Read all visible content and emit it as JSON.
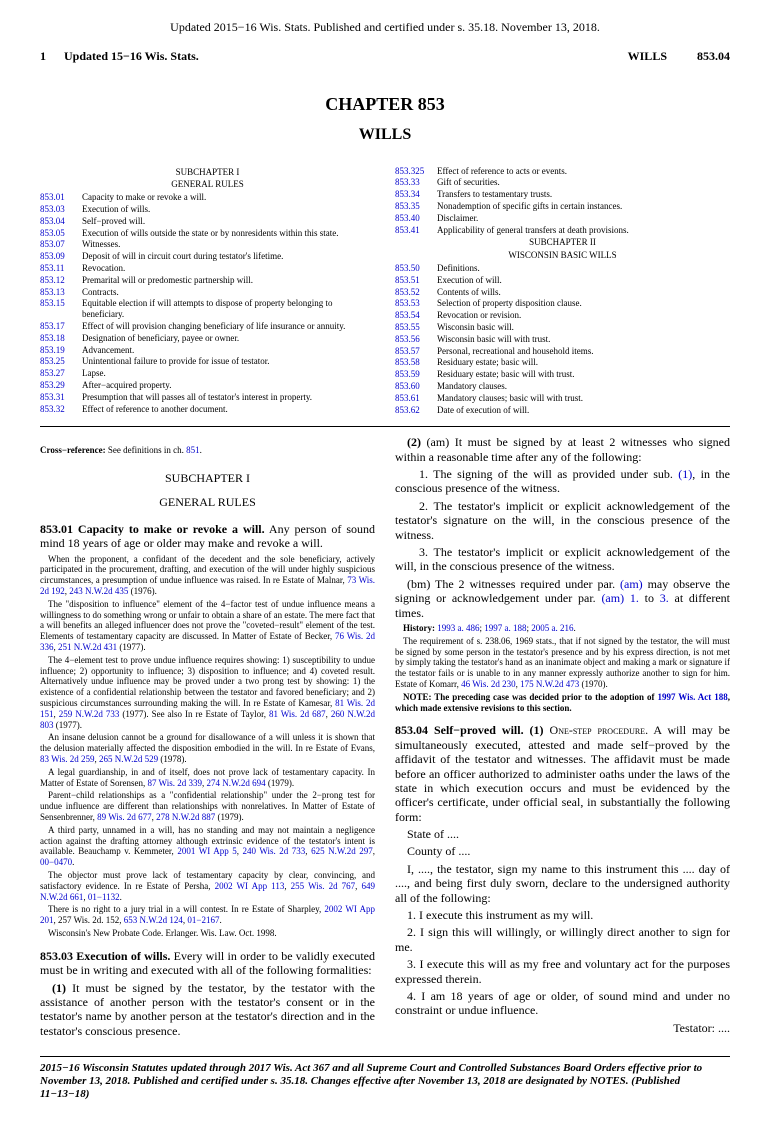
{
  "top_header": "Updated 2015−16 Wis. Stats. Published and certified under s. 35.18.  November 13, 2018.",
  "page_header": {
    "page_num": "1",
    "updated": "Updated 15−16 Wis. Stats.",
    "wills_label": "WILLS",
    "section": "853.04"
  },
  "chapter_title": "CHAPTER 853",
  "chapter_subtitle": "WILLS",
  "toc_left": {
    "subchapter": "SUBCHAPTER I",
    "heading": "GENERAL RULES",
    "items": [
      {
        "num": "853.01",
        "desc": "Capacity to make or revoke a will."
      },
      {
        "num": "853.03",
        "desc": "Execution of wills."
      },
      {
        "num": "853.04",
        "desc": "Self−proved will."
      },
      {
        "num": "853.05",
        "desc": "Execution of wills outside the state or by nonresidents within this state."
      },
      {
        "num": "853.07",
        "desc": "Witnesses."
      },
      {
        "num": "853.09",
        "desc": "Deposit of will in circuit court during testator's lifetime."
      },
      {
        "num": "853.11",
        "desc": "Revocation."
      },
      {
        "num": "853.12",
        "desc": "Premarital will or predomestic partnership will."
      },
      {
        "num": "853.13",
        "desc": "Contracts."
      },
      {
        "num": "853.15",
        "desc": "Equitable election if will attempts to dispose of property belonging to beneficiary."
      },
      {
        "num": "853.17",
        "desc": "Effect of will provision changing beneficiary of life insurance or annuity."
      },
      {
        "num": "853.18",
        "desc": "Designation of beneficiary, payee or owner."
      },
      {
        "num": "853.19",
        "desc": "Advancement."
      },
      {
        "num": "853.25",
        "desc": "Unintentional failure to provide for issue of testator."
      },
      {
        "num": "853.27",
        "desc": "Lapse."
      },
      {
        "num": "853.29",
        "desc": "After−acquired property."
      },
      {
        "num": "853.31",
        "desc": "Presumption that will passes all of testator's interest in property."
      },
      {
        "num": "853.32",
        "desc": "Effect of reference to another document."
      }
    ]
  },
  "toc_right": {
    "items1": [
      {
        "num": "853.325",
        "desc": "Effect of reference to acts or events."
      },
      {
        "num": "853.33",
        "desc": "Gift of securities."
      },
      {
        "num": "853.34",
        "desc": "Transfers to testamentary trusts."
      },
      {
        "num": "853.35",
        "desc": "Nonademption of specific gifts in certain instances."
      },
      {
        "num": "853.40",
        "desc": "Disclaimer."
      },
      {
        "num": "853.41",
        "desc": "Applicability of general transfers at death provisions."
      }
    ],
    "subchapter": "SUBCHAPTER II",
    "heading": "WISCONSIN BASIC WILLS",
    "items2": [
      {
        "num": "853.50",
        "desc": "Definitions."
      },
      {
        "num": "853.51",
        "desc": "Execution of will."
      },
      {
        "num": "853.52",
        "desc": "Contents of wills."
      },
      {
        "num": "853.53",
        "desc": "Selection of property disposition clause."
      },
      {
        "num": "853.54",
        "desc": "Revocation or revision."
      },
      {
        "num": "853.55",
        "desc": "Wisconsin basic will."
      },
      {
        "num": "853.56",
        "desc": "Wisconsin basic will with trust."
      },
      {
        "num": "853.57",
        "desc": "Personal, recreational and household items."
      },
      {
        "num": "853.58",
        "desc": "Residuary estate; basic will."
      },
      {
        "num": "853.59",
        "desc": "Residuary estate; basic will with trust."
      },
      {
        "num": "853.60",
        "desc": "Mandatory clauses."
      },
      {
        "num": "853.61",
        "desc": "Mandatory clauses; basic will with trust."
      },
      {
        "num": "853.62",
        "desc": "Date of execution of will."
      }
    ]
  },
  "cross_ref_label": "Cross−reference:",
  "cross_ref_text": "See definitions in ch.",
  "cross_ref_link": "851",
  "subchapter_hdr": "SUBCHAPTER I",
  "section_hdr": "GENERAL RULES",
  "s853_01": {
    "lead": "853.01  Capacity to make or revoke a will.",
    "text": "Any person of sound mind 18 years of age or older may make and revoke a will.",
    "ann1": "When the proponent, a confidant of the decedent and the sole beneficiary, actively participated in the procurement, drafting, and execution of the will under highly suspicious circumstances, a presumption of undue influence was raised.  In re Estate of Malnar,",
    "ann1_cite1": "73 Wis. 2d 192",
    "ann1_cite2": "243 N.W.2d 435",
    "ann1_year": "(1976).",
    "ann2": "The \"disposition to influence\" element of the 4−factor test of undue influence means a willingness to do something wrong or unfair to obtain a share of an estate.  The mere fact that a will benefits an alleged influencer does not prove the \"coveted−result\" element of the test.  Elements of testamentary capacity are discussed.  In Matter of Estate of Becker,",
    "ann2_cite1": "76 Wis. 2d 336",
    "ann2_cite2": "251 N.W.2d 431",
    "ann2_year": "(1977).",
    "ann3": "The 4−element test to prove undue influence requires showing: 1) susceptibility to undue influence; 2) opportunity to influence; 3) disposition to influence; and 4) coveted result.  Alternatively undue influence may be proved under a two prong test by showing: 1) the existence of a confidential relationship between the testator and favored beneficiary; and 2) suspicious circumstances surrounding making the will.  In re Estate of Kamesar,",
    "ann3_cite1": "81 Wis. 2d 151",
    "ann3_cite2": "259 N.W.2d 733",
    "ann3_year": "(1977).  See also In re Estate of Taylor,",
    "ann3_cite3": "81 Wis. 2d 687",
    "ann3_cite4": "260 N.W.2d 803",
    "ann3_year2": "(1977).",
    "ann4": "An insane delusion cannot be a ground for disallowance of a will unless it is shown that the delusion materially affected the disposition embodied in the will.  In re Estate of Evans,",
    "ann4_cite1": "83 Wis. 2d 259",
    "ann4_cite2": "265 N.W.2d 529",
    "ann4_year": "(1978).",
    "ann5": "A legal guardianship, in and of itself, does not prove lack of testamentary capacity.  In Matter of Estate of Sorensen,",
    "ann5_cite1": "87 Wis. 2d 339",
    "ann5_cite2": "274 N.W.2d 694",
    "ann5_year": "(1979).",
    "ann6": "Parent−child relationships as a \"confidential relationship\" under the 2−prong test for undue influence are different than relationships with nonrelatives.  In Matter of Estate of Sensenbrenner,",
    "ann6_cite1": "89 Wis. 2d 677",
    "ann6_cite2": "278 N.W.2d 887",
    "ann6_year": "(1979).",
    "ann7": "A third party, unnamed in a will, has no standing and may not maintain a negligence action against the drafting attorney although extrinsic evidence of the testator's intent is available.  Beauchamp v. Kemmeter,",
    "ann7_cite1": "2001 WI App 5",
    "ann7_cite2": "240 Wis. 2d 733",
    "ann7_cite3": "625 N.W.2d 297",
    "ann7_cite4": "00−0470",
    "ann8": "The objector must prove lack of testamentary capacity by clear, convincing, and satisfactory evidence.  In re Estate of Persha,",
    "ann8_cite1": "2002 WI App 113",
    "ann8_cite2": "255 Wis. 2d 767",
    "ann8_cite3": "649 N.W.2d 661",
    "ann8_cite4": "01−1132",
    "ann9": "There is no right to a jury trial in a will contest.  In re Estate of Sharpley,",
    "ann9_cite1": "2002 WI App 201",
    "ann9_mid": ", 257 Wis. 2d. 152,",
    "ann9_cite2": "653 N.W.2d 124",
    "ann9_cite3": "01−2167",
    "ann10": "Wisconsin's New Probate Code.  Erlanger.  Wis. Law. Oct. 1998."
  },
  "s853_03": {
    "lead": "853.03  Execution of wills.",
    "text": "Every will in order to be validly executed must be in writing and executed with all of the following formalities:",
    "p1_lead": "(1)",
    "p1": "It must be signed by the testator, by the testator with the assistance of another person with the testator's consent or in the testator's name by another person at the testator's direction and in the testator's conscious presence.",
    "p2_lead": "(2)",
    "p2_am": "(am)  It must be signed by at least 2 witnesses who signed within a reasonable time after any of the following:",
    "p2_1": "1.  The signing of the will as provided under sub.",
    "p2_1_link": "(1)",
    "p2_1_end": ", in the conscious presence of the witness.",
    "p2_2": "2.  The testator's implicit or explicit acknowledgement of the testator's signature on the will, in the conscious presence of the witness.",
    "p2_3": "3.  The testator's implicit or explicit acknowledgement of the will, in the conscious presence of the witness.",
    "bm": "(bm)  The 2 witnesses required under par.",
    "bm_link1": "(am)",
    "bm_mid": "may observe the signing or acknowledgement under par.",
    "bm_link2": "(am) 1.",
    "bm_to": "to",
    "bm_link3": "3.",
    "bm_end": "at different times.",
    "hist_lead": "History:",
    "hist_link1": "1993 a. 486",
    "hist_link2": "1997 a. 188",
    "hist_link3": "2005 a. 216",
    "ann1": "The requirement of s. 238.06, 1969 stats., that if not signed by the testator, the will must be signed by some person in the testator's presence and by his express direction, is not met by simply taking the testator's hand as an inanimate object and making a mark or signature if the testator fails or is unable to in any manner expressly authorize another to sign for him.  Estate of Komarr,",
    "ann1_cite1": "46 Wis. 2d 230",
    "ann1_cite2": "175 N.W.2d 473",
    "ann1_year": "(1970).",
    "note_lead": "NOTE:  The preceding case was decided prior to the adoption of",
    "note_link": "1997 Wis. Act 188",
    "note_end": ", which made extensive revisions to this section."
  },
  "s853_04": {
    "lead": "853.04  Self−proved will.  (1)",
    "sc": "One-step procedure.",
    "text": "A will may be simultaneously executed, attested and made self−proved by the affidavit of the testator and witnesses.  The affidavit must be made before an officer authorized to administer oaths under the laws of the state in which execution occurs and must be evidenced by the officer's certificate, under official seal, in substantially the following form:",
    "state": "State of ....",
    "county": "County of ....",
    "para": "I, ...., the testator, sign my name to this instrument this .... day of ...., and being first duly sworn, declare to the undersigned authority all of the following:",
    "i1": "1.  I execute this instrument as my will.",
    "i2": "2.  I sign this will willingly, or willingly direct another to sign for me.",
    "i3": "3.  I execute this will as my free and voluntary act for the purposes expressed therein.",
    "i4": "4.  I am 18 years of age or older, of sound mind and under no constraint or undue influence.",
    "testator": "Testator: ...."
  },
  "footer": "2015−16 Wisconsin Statutes updated through 2017 Wis. Act 367 and all Supreme Court and Controlled Substances Board Orders effective prior to November 13, 2018.  Published and certified under s. 35.18.  Changes effective after November 13, 2018 are designated by NOTES. (Published 11−13−18)"
}
